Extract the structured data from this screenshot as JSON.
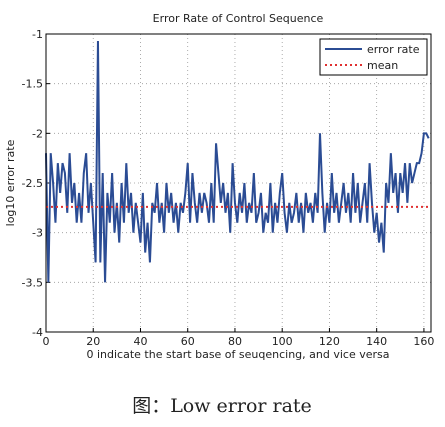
{
  "chart_data": {
    "type": "line",
    "title": "Error Rate of Control Sequence",
    "xlabel": "0 indicate the start base of seuqencing, and vice versa",
    "ylabel": "log10 error rate",
    "x": [
      0,
      1,
      2,
      3,
      4,
      5,
      6,
      7,
      8,
      9,
      10,
      11,
      12,
      13,
      14,
      15,
      16,
      17,
      18,
      19,
      20,
      21,
      22,
      23,
      24,
      25,
      26,
      27,
      28,
      29,
      30,
      31,
      32,
      33,
      34,
      35,
      36,
      37,
      38,
      39,
      40,
      41,
      42,
      43,
      44,
      45,
      46,
      47,
      48,
      49,
      50,
      51,
      52,
      53,
      54,
      55,
      56,
      57,
      58,
      59,
      60,
      61,
      62,
      63,
      64,
      65,
      66,
      67,
      68,
      69,
      70,
      71,
      72,
      73,
      74,
      75,
      76,
      77,
      78,
      79,
      80,
      81,
      82,
      83,
      84,
      85,
      86,
      87,
      88,
      89,
      90,
      91,
      92,
      93,
      94,
      95,
      96,
      97,
      98,
      99,
      100,
      101,
      102,
      103,
      104,
      105,
      106,
      107,
      108,
      109,
      110,
      111,
      112,
      113,
      114,
      115,
      116,
      117,
      118,
      119,
      120,
      121,
      122,
      123,
      124,
      125,
      126,
      127,
      128,
      129,
      130,
      131,
      132,
      133,
      134,
      135,
      136,
      137,
      138,
      139,
      140,
      141,
      142,
      143,
      144,
      145,
      146,
      147,
      148,
      149,
      150,
      151,
      152,
      153,
      154,
      155,
      156,
      157,
      158,
      159,
      160,
      161,
      162
    ],
    "series": [
      {
        "name": "error rate",
        "color": "#2b4c94",
        "values": [
          -2.2,
          -3.5,
          -2.2,
          -2.5,
          -2.9,
          -2.3,
          -2.6,
          -2.3,
          -2.4,
          -2.8,
          -2.2,
          -2.7,
          -2.5,
          -2.9,
          -2.6,
          -2.9,
          -2.4,
          -2.2,
          -2.8,
          -2.5,
          -2.9,
          -3.3,
          -1.07,
          -3.3,
          -2.4,
          -3.5,
          -2.6,
          -2.9,
          -2.4,
          -3.0,
          -2.7,
          -3.1,
          -2.5,
          -2.9,
          -2.3,
          -2.8,
          -2.6,
          -3.0,
          -2.7,
          -2.9,
          -3.1,
          -2.6,
          -3.2,
          -2.9,
          -3.3,
          -2.7,
          -2.8,
          -2.5,
          -2.9,
          -2.7,
          -3.0,
          -2.5,
          -2.8,
          -2.6,
          -2.9,
          -2.7,
          -3.0,
          -2.7,
          -2.8,
          -2.6,
          -2.3,
          -2.9,
          -2.4,
          -2.7,
          -2.9,
          -2.6,
          -2.8,
          -2.6,
          -2.7,
          -2.9,
          -2.5,
          -2.9,
          -2.1,
          -2.4,
          -2.7,
          -2.5,
          -2.8,
          -2.6,
          -3.0,
          -2.3,
          -2.7,
          -2.9,
          -2.6,
          -2.8,
          -2.5,
          -2.9,
          -2.7,
          -2.8,
          -2.4,
          -2.9,
          -2.8,
          -2.6,
          -3.0,
          -2.8,
          -2.9,
          -2.5,
          -3.0,
          -2.7,
          -2.9,
          -2.6,
          -2.4,
          -2.8,
          -3.0,
          -2.7,
          -2.9,
          -2.8,
          -2.6,
          -2.9,
          -2.7,
          -3.0,
          -2.6,
          -2.8,
          -2.7,
          -2.9,
          -2.6,
          -2.8,
          -2.0,
          -2.6,
          -3.0,
          -2.7,
          -2.9,
          -2.4,
          -2.8,
          -2.6,
          -2.9,
          -2.7,
          -2.5,
          -2.8,
          -2.6,
          -2.9,
          -2.4,
          -2.8,
          -2.5,
          -2.9,
          -2.7,
          -2.5,
          -2.9,
          -2.3,
          -2.7,
          -3.0,
          -2.8,
          -3.1,
          -2.9,
          -3.2,
          -2.5,
          -2.7,
          -2.2,
          -2.6,
          -2.4,
          -2.8,
          -2.4,
          -2.6,
          -2.3,
          -2.7,
          -2.3,
          -2.5,
          -2.4,
          -2.3,
          -2.3,
          -2.2,
          -2.0,
          -2.0,
          -2.05
        ]
      }
    ],
    "mean_line": {
      "name": "mean",
      "value": -2.74,
      "color": "#e03030"
    },
    "xlim": [
      0,
      163
    ],
    "xticks": [
      0,
      20,
      40,
      60,
      80,
      100,
      120,
      140,
      160
    ],
    "ylim": [
      -4,
      -1
    ],
    "yticks": [
      -4,
      -3.5,
      -3,
      -2.5,
      -2,
      -1.5,
      -1
    ],
    "grid": true,
    "legend": "upper right"
  },
  "caption": "图：Low error rate"
}
